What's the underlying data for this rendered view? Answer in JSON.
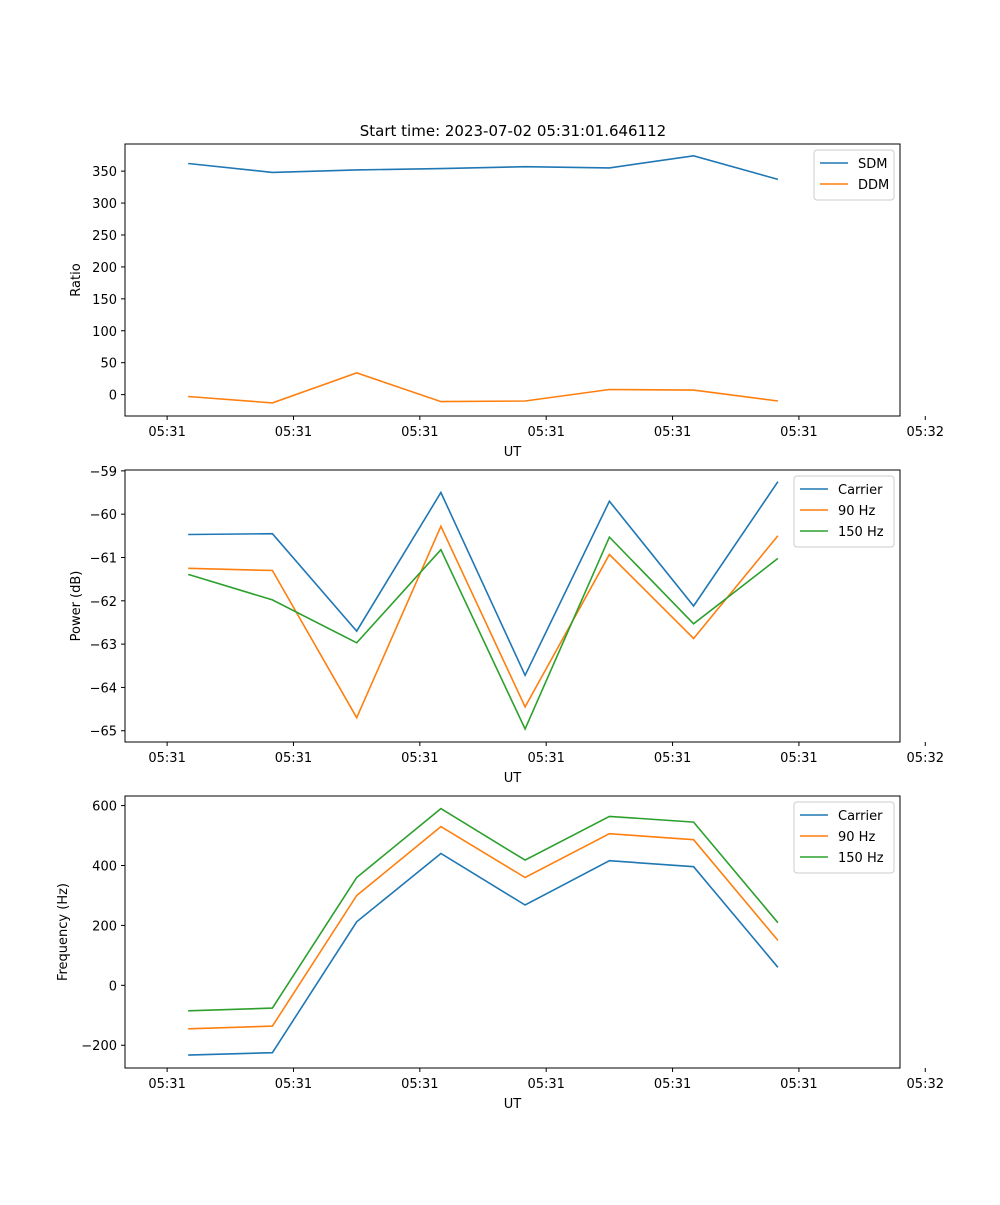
{
  "chart_data": [
    {
      "type": "line",
      "title": "Start time: 2023-07-02 05:31:01.646112",
      "xlabel": "UT",
      "ylabel": "Ratio",
      "xticks": [
        "05:31",
        "05:31",
        "05:31",
        "05:31",
        "05:31",
        "05:31",
        "05:32"
      ],
      "yticks": [
        0,
        50,
        100,
        150,
        200,
        250,
        300,
        350
      ],
      "ylim": [
        -33.5,
        392.5
      ],
      "xlim": [
        -0.5,
        8.7
      ],
      "x": [
        0.25,
        1.25,
        2.25,
        3.25,
        4.25,
        5.25,
        6.25,
        7.25
      ],
      "series": [
        {
          "name": "SDM",
          "color": "#1f77b4",
          "values": [
            362,
            348,
            352,
            354,
            357,
            355,
            374,
            337
          ]
        },
        {
          "name": "DDM",
          "color": "#ff7f0e",
          "values": [
            -3,
            -13,
            34,
            -11,
            -10,
            8,
            7,
            -10
          ]
        }
      ],
      "legend": "top-right"
    },
    {
      "type": "line",
      "title": "",
      "xlabel": "UT",
      "ylabel": "Power (dB)",
      "xticks": [
        "05:31",
        "05:31",
        "05:31",
        "05:31",
        "05:31",
        "05:31",
        "05:32"
      ],
      "yticks": [
        -65,
        -64,
        -63,
        -62,
        -61,
        -60,
        -59
      ],
      "ylim": [
        -65.26,
        -58.98
      ],
      "xlim": [
        -0.5,
        8.7
      ],
      "x": [
        0.25,
        1.25,
        2.25,
        3.25,
        4.25,
        5.25,
        6.25,
        7.25
      ],
      "series": [
        {
          "name": "Carrier",
          "color": "#1f77b4",
          "values": [
            -60.47,
            -60.45,
            -62.7,
            -59.5,
            -63.72,
            -59.7,
            -62.12,
            -59.25
          ]
        },
        {
          "name": "90 Hz",
          "color": "#ff7f0e",
          "values": [
            -61.25,
            -61.3,
            -64.7,
            -60.28,
            -64.45,
            -60.93,
            -62.87,
            -60.5
          ]
        },
        {
          "name": "150 Hz",
          "color": "#2ca02c",
          "values": [
            -61.39,
            -61.98,
            -62.97,
            -60.82,
            -64.96,
            -60.53,
            -62.53,
            -61.02
          ]
        }
      ],
      "legend": "top-right"
    },
    {
      "type": "line",
      "title": "",
      "xlabel": "UT",
      "ylabel": "Frequency (Hz)",
      "xticks": [
        "05:31",
        "05:31",
        "05:31",
        "05:31",
        "05:31",
        "05:31",
        "05:32"
      ],
      "yticks": [
        -200,
        0,
        200,
        400,
        600
      ],
      "ylim": [
        -276,
        632
      ],
      "xlim": [
        -0.5,
        8.7
      ],
      "x": [
        0.25,
        1.25,
        2.25,
        3.25,
        4.25,
        5.25,
        6.25,
        7.25
      ],
      "series": [
        {
          "name": "Carrier",
          "color": "#1f77b4",
          "values": [
            -233,
            -225,
            212,
            440,
            268,
            416,
            396,
            60
          ]
        },
        {
          "name": "90 Hz",
          "color": "#ff7f0e",
          "values": [
            -145,
            -136,
            300,
            530,
            360,
            506,
            486,
            150
          ]
        },
        {
          "name": "150 Hz",
          "color": "#2ca02c",
          "values": [
            -85,
            -76,
            360,
            590,
            418,
            564,
            545,
            209
          ]
        }
      ],
      "legend": "top-right"
    }
  ]
}
